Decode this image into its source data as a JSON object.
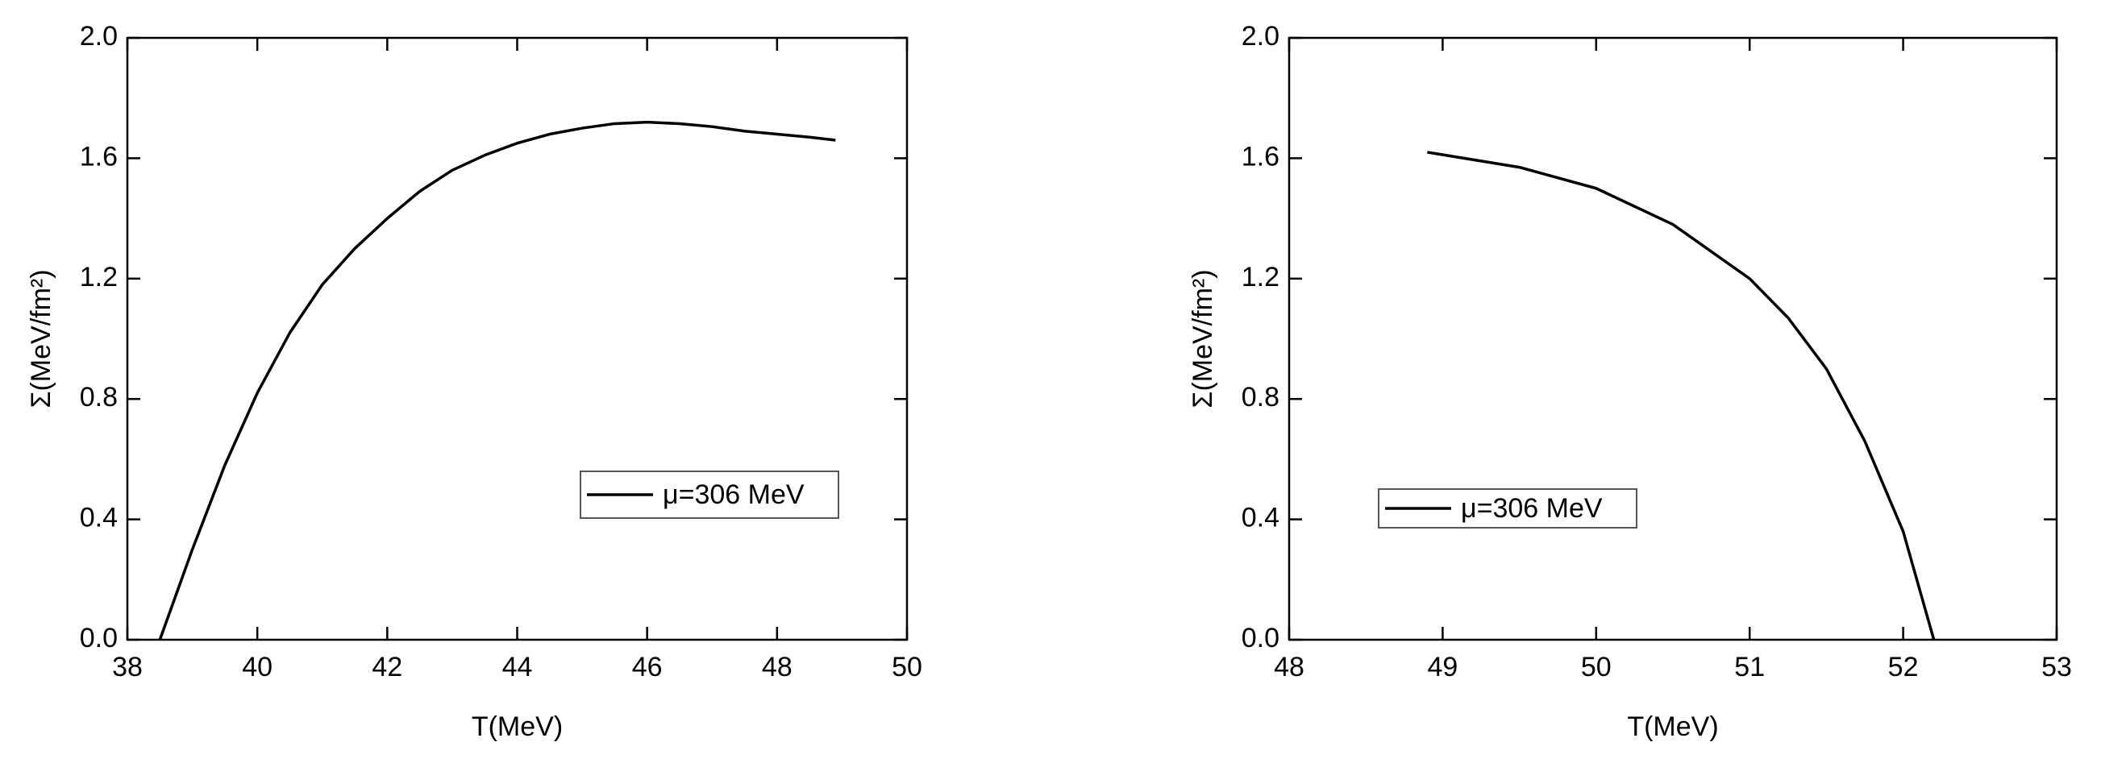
{
  "chart_data": [
    {
      "type": "line",
      "x_label": "T(MeV)",
      "y_label": "Σ(MeV/fm²)",
      "x": [
        38.5,
        39,
        39.5,
        40,
        40.5,
        41,
        41.5,
        42,
        42.5,
        43,
        43.5,
        44,
        44.5,
        45,
        45.5,
        46,
        46.5,
        47,
        47.5,
        48,
        48.5,
        48.9
      ],
      "series": [
        {
          "name": "μ=306 MeV",
          "color": "#000000",
          "values": [
            0,
            0.3,
            0.58,
            0.82,
            1.02,
            1.18,
            1.3,
            1.4,
            1.49,
            1.56,
            1.61,
            1.65,
            1.68,
            1.7,
            1.715,
            1.72,
            1.715,
            1.705,
            1.69,
            1.68,
            1.67,
            1.66
          ]
        }
      ],
      "xlim": [
        38,
        50
      ],
      "xticks": [
        38,
        40,
        42,
        44,
        46,
        48,
        50
      ],
      "ylim": [
        0,
        2
      ],
      "yticks": [
        {
          "value": 0,
          "label": "0.0"
        },
        0.4,
        0.8,
        1.2,
        1.6,
        {
          "value": 2,
          "label": "2.0"
        }
      ]
    },
    {
      "type": "line",
      "x_label": "T(MeV)",
      "y_label": "Σ(MeV/fm²)",
      "x": [
        48.9,
        49.5,
        50,
        50.5,
        51,
        51.25,
        51.5,
        51.75,
        52,
        52.2
      ],
      "series": [
        {
          "name": "μ=306 MeV",
          "color": "#000000",
          "values": [
            1.62,
            1.57,
            1.5,
            1.38,
            1.2,
            1.07,
            0.9,
            0.66,
            0.36,
            0
          ]
        }
      ],
      "xlim": [
        48,
        53
      ],
      "xticks": [
        48,
        49,
        50,
        51,
        52,
        53
      ],
      "ylim": [
        0,
        2
      ],
      "yticks": [
        {
          "value": 0,
          "label": "0.0"
        },
        0.4,
        0.8,
        1.2,
        1.6,
        {
          "value": 2,
          "label": "2.0"
        }
      ]
    }
  ]
}
